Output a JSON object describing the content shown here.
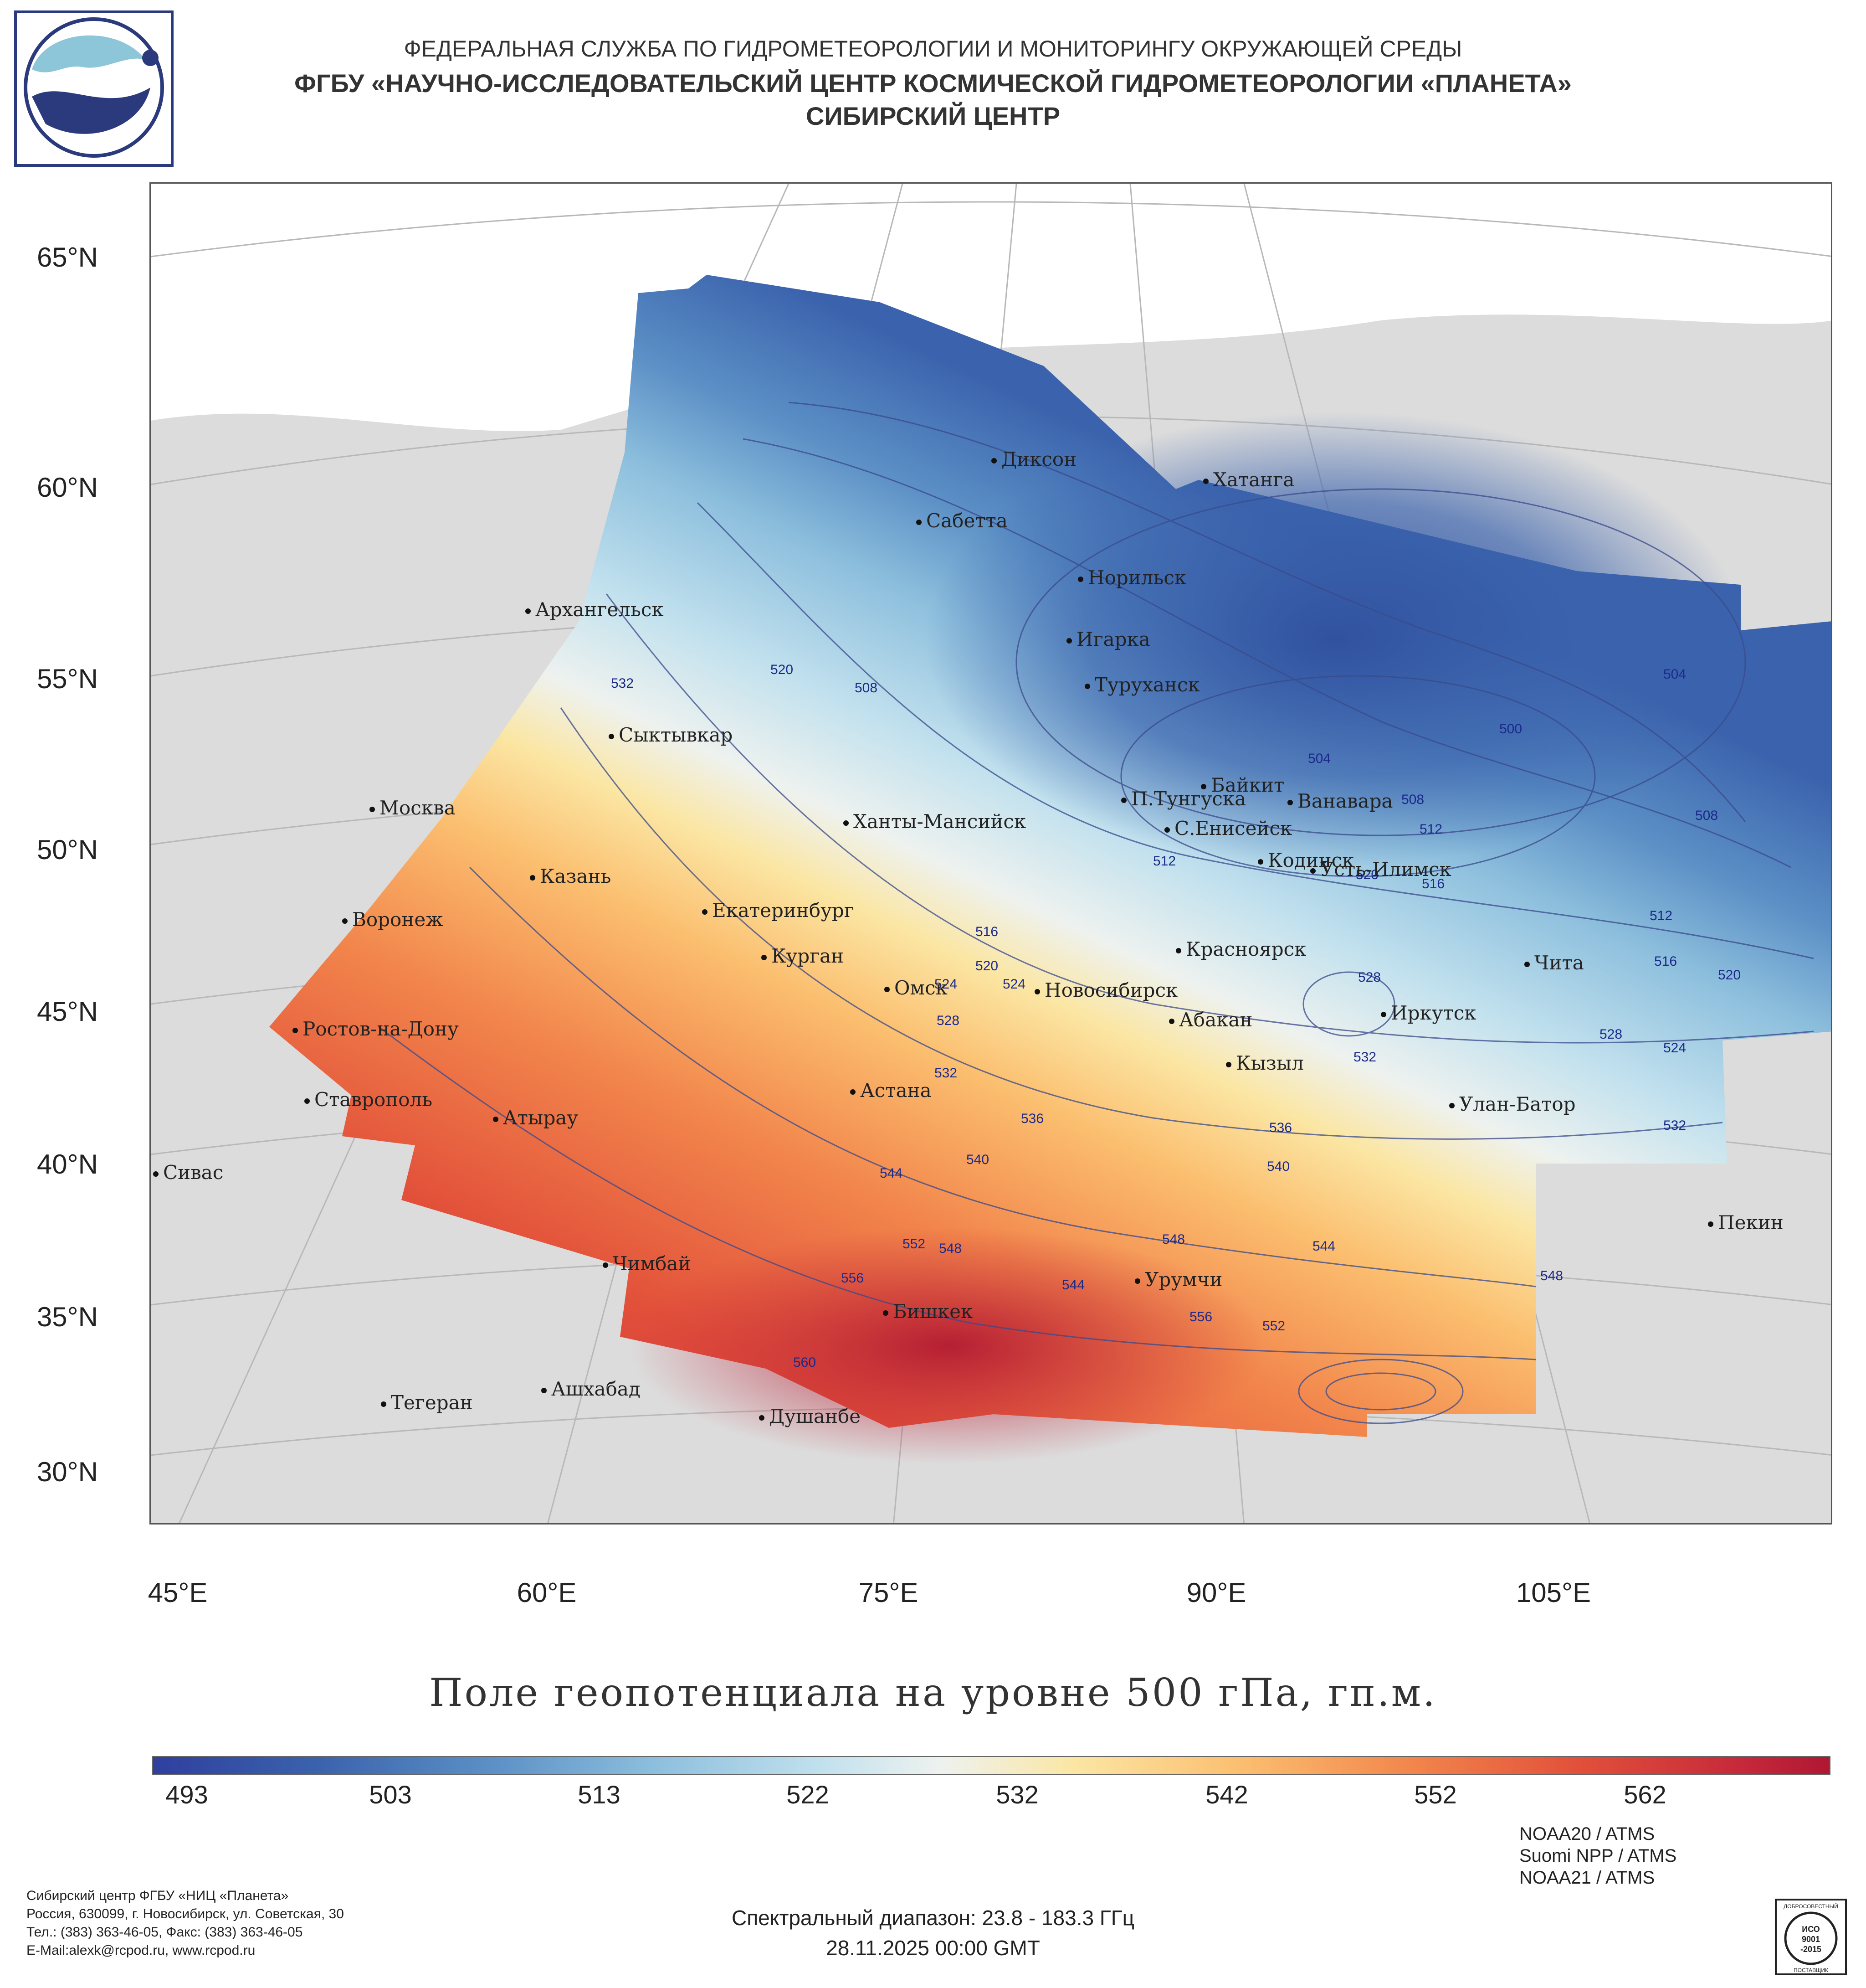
{
  "header": {
    "line1": "ФЕДЕРАЛЬНАЯ СЛУЖБА ПО ГИДРОМЕТЕОРОЛОГИИ И МОНИТОРИНГУ ОКРУЖАЮЩЕЙ СРЕДЫ",
    "line2": "ФГБУ «НАУЧНО-ИССЛЕДОВАТЕЛЬСКИЙ ЦЕНТР КОСМИЧЕСКОЙ ГИДРОМЕТЕОРОЛОГИИ «ПЛАНЕТА»",
    "line3": "СИБИРСКИЙ ЦЕНТР"
  },
  "map": {
    "lat_labels": [
      "65°N",
      "60°N",
      "55°N",
      "50°N",
      "45°N",
      "40°N",
      "35°N",
      "30°N"
    ],
    "lon_labels": [
      "45°E",
      "60°E",
      "75°E",
      "90°E",
      "105°E"
    ],
    "cities": [
      {
        "name": "Диксон"
      },
      {
        "name": "Хатанга"
      },
      {
        "name": "Сабетта"
      },
      {
        "name": "Норильск"
      },
      {
        "name": "Архангельск"
      },
      {
        "name": "Игарка"
      },
      {
        "name": "Туруханск"
      },
      {
        "name": "Сыктывкар"
      },
      {
        "name": "Байкит"
      },
      {
        "name": "Москва"
      },
      {
        "name": "П.Тунгуска"
      },
      {
        "name": "Ванавара"
      },
      {
        "name": "Ханты-Мансийск"
      },
      {
        "name": "С.Енисейск"
      },
      {
        "name": "Кодинск"
      },
      {
        "name": "Усть-Илимск"
      },
      {
        "name": "Казань"
      },
      {
        "name": "Воронеж"
      },
      {
        "name": "Екатеринбург"
      },
      {
        "name": "Красноярск"
      },
      {
        "name": "Курган"
      },
      {
        "name": "Чита"
      },
      {
        "name": "Омск"
      },
      {
        "name": "Новосибирск"
      },
      {
        "name": "Иркутск"
      },
      {
        "name": "Ростов-на-Дону"
      },
      {
        "name": "Абакан"
      },
      {
        "name": "Кызыл"
      },
      {
        "name": "Ставрополь"
      },
      {
        "name": "Астана"
      },
      {
        "name": "Улан-Батор"
      },
      {
        "name": "Атырау"
      },
      {
        "name": "Сивас"
      },
      {
        "name": "Пекин"
      },
      {
        "name": "Чимбай"
      },
      {
        "name": "Урумчи"
      },
      {
        "name": "Бишкек"
      },
      {
        "name": "Ашхабад"
      },
      {
        "name": "Тегеран"
      },
      {
        "name": "Душанбе"
      }
    ],
    "isolines": [
      "504",
      "500",
      "504",
      "508",
      "512",
      "508",
      "512",
      "516",
      "520",
      "520",
      "524",
      "516",
      "520",
      "524",
      "528",
      "528",
      "532",
      "532",
      "536",
      "536",
      "540",
      "540",
      "544",
      "548",
      "552",
      "548",
      "544",
      "544",
      "556",
      "556",
      "552",
      "548",
      "560",
      "532",
      "528",
      "524",
      "512",
      "516",
      "532",
      "520",
      "508"
    ]
  },
  "title": "Поле геопотенциала на уровне 500 гПа, гп.м.",
  "colorbar": {
    "ticks": [
      "493",
      "503",
      "513",
      "522",
      "532",
      "542",
      "552",
      "562"
    ],
    "colors": {
      "low": "#2f3f9e",
      "mid": "#eef2ef",
      "high": "#b01732"
    }
  },
  "footer": {
    "org": "Сибирский центр ФГБУ «НИЦ «Планета»",
    "address": "Россия, 630099, г. Новосибирск, ул. Советская, 30",
    "phone": "Тел.: (383) 363-46-05, Факс: (383) 363-46-05",
    "email": "E-Mail:alexk@rcpod.ru, www.rcpod.ru",
    "spectral": "Спектральный диапазон: 23.8 - 183.3 ГГц",
    "datetime": "28.11.2025 00:00 GMT",
    "sensors": [
      "NOAA20 / ATMS",
      "Suomi NPP / ATMS",
      "NOAA21 / ATMS"
    ],
    "cert_text": [
      "ДОБРОСОВЕСТНЫЙ",
      "ИСО",
      "9001",
      "-2015",
      "ПОСТАВЩИК"
    ]
  }
}
